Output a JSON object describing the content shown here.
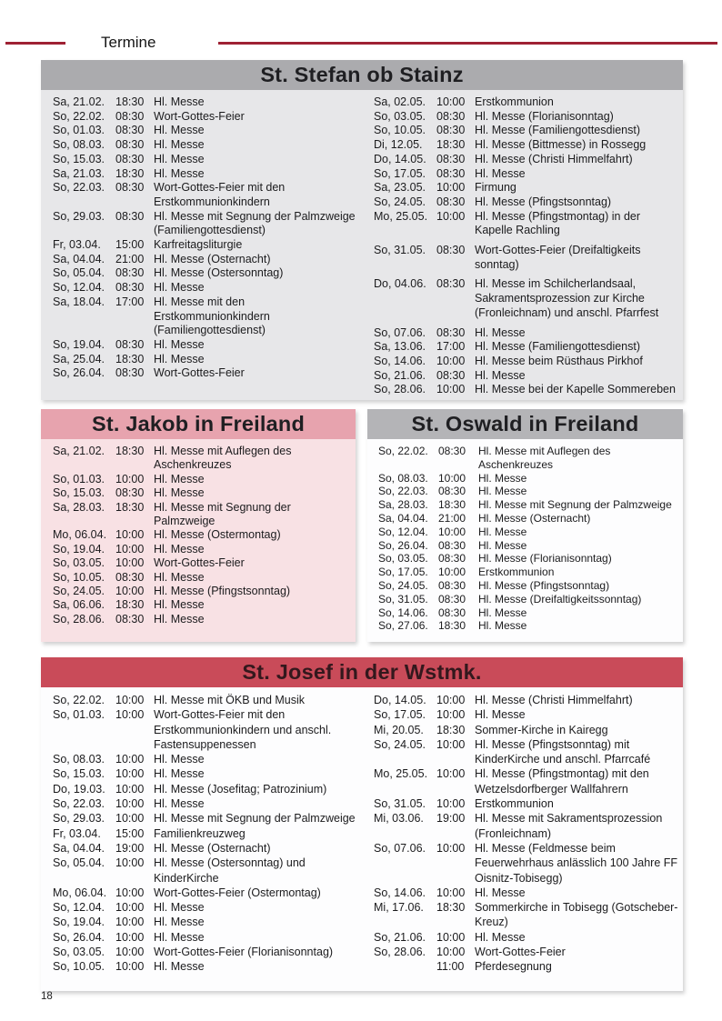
{
  "page": {
    "header": "Termine",
    "page_number": "18"
  },
  "colors": {
    "rule_red": "#9e2133",
    "gray_header": "#ababae",
    "gray_body": "#e7e7e9",
    "pink_header": "#e7a3ae",
    "pink_body": "#f8e1e4",
    "red_header": "#c94b59"
  },
  "sections": [
    {
      "title": "St. Stefan ob Stainz",
      "columns": [
        [
          {
            "date": "Sa, 21.02.",
            "time": "18:30",
            "text": "Hl. Messe"
          },
          {
            "date": "So, 22.02.",
            "time": "08:30",
            "text": "Wort-Gottes-Feier"
          },
          {
            "date": "So, 01.03.",
            "time": "08:30",
            "text": "Hl. Messe"
          },
          {
            "date": "So, 08.03.",
            "time": "08:30",
            "text": "Hl. Messe"
          },
          {
            "date": "So, 15.03.",
            "time": "08:30",
            "text": "Hl. Messe"
          },
          {
            "date": "Sa, 21.03.",
            "time": "18:30",
            "text": "Hl. Messe"
          },
          {
            "date": "So, 22.03.",
            "time": "08:30",
            "text": "Wort-Gottes-Feier mit den Erstkommunionkindern"
          },
          {
            "date": "So, 29.03.",
            "time": "08:30",
            "text": "Hl. Messe mit Segnung der Palmzweige (Familiengottesdienst)"
          },
          {
            "date": "Fr, 03.04.",
            "time": "15:00",
            "text": "Karfreitagsliturgie"
          },
          {
            "date": "Sa, 04.04.",
            "time": "21:00",
            "text": "Hl. Messe (Osternacht)"
          },
          {
            "date": "So, 05.04.",
            "time": "08:30",
            "text": "Hl. Messe (Ostersonntag)"
          },
          {
            "date": "So, 12.04.",
            "time": "08:30",
            "text": "Hl. Messe"
          },
          {
            "date": "Sa, 18.04.",
            "time": "17:00",
            "text": "Hl. Messe mit den Erstkommunionkindern (Familiengottesdienst)"
          },
          {
            "date": "So, 19.04.",
            "time": "08:30",
            "text": "Hl. Messe"
          },
          {
            "date": "Sa, 25.04.",
            "time": "18:30",
            "text": "Hl. Messe"
          },
          {
            "date": "So, 26.04.",
            "time": "08:30",
            "text": "Wort-Gottes-Feier"
          }
        ],
        [
          {
            "date": "Sa, 02.05.",
            "time": "10:00",
            "text": "Erstkommunion"
          },
          {
            "date": "So, 03.05.",
            "time": "08:30",
            "text": "Hl. Messe (Florianisonntag)"
          },
          {
            "date": "So, 10.05.",
            "time": "08:30",
            "text": "Hl. Messe (Familiengottesdienst)"
          },
          {
            "date": "Di, 12.05.",
            "time": "18:30",
            "text": "Hl. Messe (Bittmesse) in Rossegg"
          },
          {
            "date": "Do, 14.05.",
            "time": "08:30",
            "text": "Hl. Messe (Christi Himmelfahrt)"
          },
          {
            "date": "So, 17.05.",
            "time": "08:30",
            "text": "Hl. Messe"
          },
          {
            "date": "Sa, 23.05.",
            "time": "10:00",
            "text": "Firmung"
          },
          {
            "date": "So, 24.05.",
            "time": "08:30",
            "text": "Hl. Messe (Pfingstsonntag)"
          },
          {
            "date": "Mo, 25.05.",
            "time": "10:00",
            "text": "Hl. Messe (Pfingstmontag) in der Kapelle Rachling"
          },
          {
            "date": "So, 31.05.",
            "time": "08:30",
            "text": "Wort-Gottes-Feier (Dreifaltigkeits sonntag)",
            "gap": true
          },
          {
            "date": "Do, 04.06.",
            "time": "08:30",
            "text": "Hl. Messe im Schilcherlandsaal, Sakramentsprozession zur Kirche (Fronleichnam) und anschl. Pfarrfest",
            "gap": true
          },
          {
            "date": "So, 07.06.",
            "time": "08:30",
            "text": "Hl. Messe",
            "gap": true
          },
          {
            "date": "Sa, 13.06.",
            "time": "17:00",
            "text": "Hl. Messe (Familiengottesdienst)"
          },
          {
            "date": "So, 14.06.",
            "time": "10:00",
            "text": "Hl. Messe beim Rüsthaus Pirkhof"
          },
          {
            "date": "So, 21.06.",
            "time": "08:30",
            "text": "Hl. Messe"
          },
          {
            "date": "So, 28.06.",
            "time": "10:00",
            "text": "Hl. Messe bei der Kapelle Sommereben"
          }
        ]
      ]
    },
    {
      "title": "St. Jakob in Freiland",
      "columns": [
        [
          {
            "date": "Sa, 21.02.",
            "time": "18:30",
            "text": "Hl. Messe mit Auflegen des Aschenkreuzes"
          },
          {
            "date": "So, 01.03.",
            "time": "10:00",
            "text": "Hl. Messe"
          },
          {
            "date": "So, 15.03.",
            "time": "08:30",
            "text": "Hl. Messe"
          },
          {
            "date": "Sa, 28.03.",
            "time": "18:30",
            "text": "Hl. Messe mit Segnung der Palmzweige"
          },
          {
            "date": "Mo, 06.04.",
            "time": "10:00",
            "text": "Hl. Messe (Ostermontag)"
          },
          {
            "date": "So, 19.04.",
            "time": "10:00",
            "text": "Hl. Messe"
          },
          {
            "date": "So, 03.05.",
            "time": "10:00",
            "text": "Wort-Gottes-Feier"
          },
          {
            "date": "So, 10.05.",
            "time": "08:30",
            "text": "Hl. Messe"
          },
          {
            "date": "So, 24.05.",
            "time": "10:00",
            "text": "Hl. Messe (Pfingstsonntag)"
          },
          {
            "date": "Sa, 06.06.",
            "time": "18:30",
            "text": "Hl. Messe"
          },
          {
            "date": "So, 28.06.",
            "time": "08:30",
            "text": "Hl. Messe"
          }
        ]
      ]
    },
    {
      "title": "St. Oswald in Freiland",
      "columns": [
        [
          {
            "date": "So, 22.02.",
            "time": "08:30",
            "text": "Hl. Messe mit Auflegen des Aschenkreuzes"
          },
          {
            "date": "So, 08.03.",
            "time": "10:00",
            "text": "Hl. Messe"
          },
          {
            "date": "So, 22.03.",
            "time": "08:30",
            "text": "Hl. Messe"
          },
          {
            "date": "Sa, 28.03.",
            "time": "18:30",
            "text": "Hl. Messe mit Segnung der Palmzweige"
          },
          {
            "date": "Sa, 04.04.",
            "time": "21:00",
            "text": "Hl. Messe (Osternacht)"
          },
          {
            "date": "So, 12.04.",
            "time": "10:00",
            "text": "Hl. Messe"
          },
          {
            "date": "So, 26.04.",
            "time": "08:30",
            "text": "Hl. Messe"
          },
          {
            "date": "So, 03.05.",
            "time": "08:30",
            "text": "Hl. Messe (Florianisonntag)"
          },
          {
            "date": "So, 17.05.",
            "time": "10:00",
            "text": "Erstkommunion"
          },
          {
            "date": "So, 24.05.",
            "time": "08:30",
            "text": "Hl. Messe (Pfingstsonntag)"
          },
          {
            "date": "So, 31.05.",
            "time": "08:30",
            "text": "Hl. Messe (Dreifaltigkeitssonntag)"
          },
          {
            "date": "So, 14.06.",
            "time": "08:30",
            "text": "Hl. Messe"
          },
          {
            "date": "So, 27.06.",
            "time": "18:30",
            "text": "Hl. Messe"
          }
        ]
      ]
    },
    {
      "title": "St. Josef in der Wstmk.",
      "columns": [
        [
          {
            "date": "So, 22.02.",
            "time": "10:00",
            "text": "Hl. Messe mit ÖKB und Musik"
          },
          {
            "date": "So, 01.03.",
            "time": "10:00",
            "text": "Wort-Gottes-Feier mit den Erstkommunionkindern und anschl. Fastensuppenessen"
          },
          {
            "date": "So, 08.03.",
            "time": "10:00",
            "text": "Hl. Messe"
          },
          {
            "date": "So, 15.03.",
            "time": "10:00",
            "text": "Hl. Messe"
          },
          {
            "date": "Do, 19.03.",
            "time": "10:00",
            "text": "Hl. Messe (Josefitag; Patrozinium)"
          },
          {
            "date": "So, 22.03.",
            "time": "10:00",
            "text": "Hl. Messe"
          },
          {
            "date": "So, 29.03.",
            "time": "10:00",
            "text": "Hl. Messe mit Segnung der Palmzweige"
          },
          {
            "date": "Fr, 03.04.",
            "time": "15:00",
            "text": "Familienkreuzweg"
          },
          {
            "date": "Sa, 04.04.",
            "time": "19:00",
            "text": "Hl. Messe (Osternacht)"
          },
          {
            "date": "So, 05.04.",
            "time": "10:00",
            "text": "Hl. Messe (Ostersonntag) und KinderKirche"
          },
          {
            "date": "Mo, 06.04.",
            "time": "10:00",
            "text": "Wort-Gottes-Feier (Ostermontag)"
          },
          {
            "date": "So, 12.04.",
            "time": "10:00",
            "text": "Hl. Messe"
          },
          {
            "date": "So, 19.04.",
            "time": "10:00",
            "text": "Hl. Messe"
          },
          {
            "date": "So, 26.04.",
            "time": "10:00",
            "text": "Hl. Messe"
          },
          {
            "date": "So, 03.05.",
            "time": "10:00",
            "text": "Wort-Gottes-Feier (Florianisonntag)"
          },
          {
            "date": "So, 10.05.",
            "time": "10:00",
            "text": "Hl. Messe"
          }
        ],
        [
          {
            "date": "Do, 14.05.",
            "time": "10:00",
            "text": "Hl. Messe (Christi Himmelfahrt)"
          },
          {
            "date": "So, 17.05.",
            "time": "10:00",
            "text": "Hl. Messe"
          },
          {
            "date": "Mi, 20.05.",
            "time": "18:30",
            "text": "Sommer-Kirche in Kairegg"
          },
          {
            "date": "So, 24.05.",
            "time": "10:00",
            "text": "Hl. Messe (Pfingstsonntag) mit KinderKirche und anschl. Pfarrcafé"
          },
          {
            "date": "Mo, 25.05.",
            "time": "10:00",
            "text": "Hl. Messe (Pfingstmontag) mit den Wetzelsdorfberger Wallfahrern"
          },
          {
            "date": "So, 31.05.",
            "time": "10:00",
            "text": "Erstkommunion"
          },
          {
            "date": "Mi, 03.06.",
            "time": "19:00",
            "text": "Hl. Messe mit Sakramentsprozession (Fronleichnam)"
          },
          {
            "date": "So, 07.06.",
            "time": "10:00",
            "text": "Hl. Messe (Feldmesse beim Feuerwehrhaus anlässlich 100 Jahre FF Oisnitz-Tobisegg)"
          },
          {
            "date": "So, 14.06.",
            "time": "10:00",
            "text": "Hl. Messe"
          },
          {
            "date": "Mi, 17.06.",
            "time": "18:30",
            "text": "Sommerkirche in Tobisegg (Gotscheber-Kreuz)"
          },
          {
            "date": "So, 21.06.",
            "time": "10:00",
            "text": "Hl. Messe"
          },
          {
            "date": "So, 28.06.",
            "time": "10:00",
            "text": "Wort-Gottes-Feier"
          },
          {
            "date": "",
            "time": "11:00",
            "text": "Pferdesegnung"
          }
        ]
      ]
    }
  ]
}
